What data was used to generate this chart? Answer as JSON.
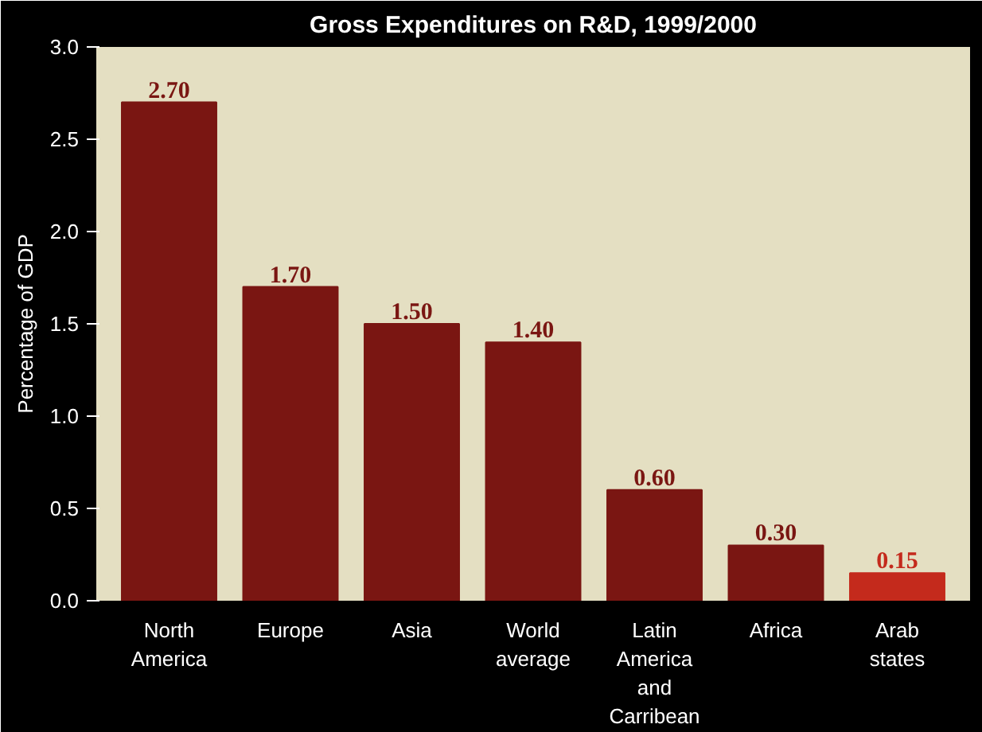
{
  "chart_data": {
    "type": "bar",
    "title": "Gross Expenditures on R&D, 1999/2000",
    "ylabel": "Percentage of GDP",
    "categories": [
      "North\nAmerica",
      "Europe",
      "Asia",
      "World\naverage",
      "Latin\nAmerica\nand\nCarribean",
      "Africa",
      "Arab\nstates"
    ],
    "values": [
      2.7,
      1.7,
      1.5,
      1.4,
      0.6,
      0.3,
      0.15
    ],
    "value_labels": [
      "2.70",
      "1.70",
      "1.50",
      "1.40",
      "0.60",
      "0.30",
      "0.15"
    ],
    "colors": [
      "#7a1612",
      "#7a1612",
      "#7a1612",
      "#7a1612",
      "#7a1612",
      "#7a1612",
      "#c42a1c"
    ],
    "ylim": [
      0,
      3.0
    ],
    "yticks": [
      "0.0",
      "0.5",
      "1.0",
      "1.5",
      "2.0",
      "2.5",
      "3.0"
    ],
    "grid": false
  }
}
